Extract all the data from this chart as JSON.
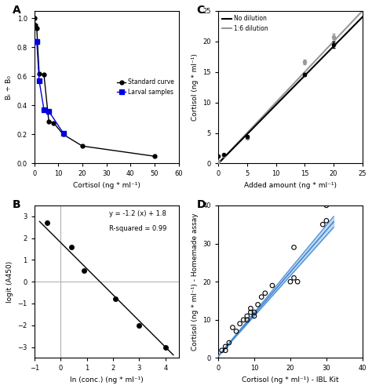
{
  "panel_A": {
    "label": "A",
    "std_x": [
      0,
      0.5,
      1,
      2,
      4,
      6,
      8,
      12,
      20,
      50
    ],
    "std_y": [
      1.0,
      0.95,
      0.93,
      0.62,
      0.61,
      0.29,
      0.28,
      0.2,
      0.12,
      0.05
    ],
    "larval_x": [
      0.5,
      1,
      2,
      4,
      6,
      12
    ],
    "larval_y": [
      0.84,
      0.84,
      0.57,
      0.37,
      0.36,
      0.21
    ],
    "xlabel": "Cortisol (ng * ml⁻¹)",
    "ylabel": "Bᵢ ÷ B₀",
    "xlim": [
      0,
      60
    ],
    "ylim": [
      0.0,
      1.05
    ],
    "xticks": [
      0,
      10,
      20,
      30,
      40,
      50,
      60
    ],
    "yticks": [
      0.0,
      0.2,
      0.4,
      0.6,
      0.8,
      1.0
    ],
    "std_color": "#000000",
    "larval_color": "#0000dd",
    "legend_std": "Standard curve",
    "legend_larval": "Larval samples"
  },
  "panel_B": {
    "label": "B",
    "x": [
      -0.5,
      0.4,
      0.9,
      2.1,
      3.0,
      4.0
    ],
    "y": [
      2.7,
      1.6,
      0.5,
      -0.8,
      -2.0,
      -3.0
    ],
    "fit_x_min": -0.8,
    "fit_x_max": 4.3,
    "fit_slope": -1.2,
    "fit_intercept": 1.8,
    "equation": "y = -1.2 (x) + 1.8",
    "r_squared": "R-squared = 0.99",
    "xlabel": "ln (conc.) (ng * ml⁻¹)",
    "ylabel": "logit (A450)",
    "xlim": [
      -1,
      4.5
    ],
    "ylim": [
      -3.5,
      3.5
    ],
    "xticks": [
      -1,
      0,
      1,
      2,
      3,
      4
    ],
    "yticks": [
      -3,
      -2,
      -1,
      0,
      1,
      2,
      3
    ],
    "vline_x": 0,
    "hline_y": 0,
    "dot_color": "#000000"
  },
  "panel_C": {
    "label": "C",
    "no_dil_x": [
      0,
      1,
      5,
      15,
      20
    ],
    "no_dil_y": [
      1.2,
      1.5,
      4.4,
      14.6,
      19.5
    ],
    "no_dil_yerr": [
      0.1,
      0.1,
      0.2,
      0.3,
      0.5
    ],
    "dil_x": [
      0,
      1,
      5,
      15,
      20
    ],
    "dil_y": [
      0.3,
      1.3,
      4.2,
      16.6,
      20.8
    ],
    "dil_yerr": [
      0.05,
      0.15,
      0.2,
      0.4,
      0.4
    ],
    "xlabel": "Added amount (ng * ml⁻¹)",
    "ylabel": "Cortisol (ng * ml⁻¹)",
    "xlim": [
      0,
      25
    ],
    "ylim": [
      0,
      25
    ],
    "xticks": [
      0,
      5,
      10,
      15,
      20,
      25
    ],
    "yticks": [
      0,
      5,
      10,
      15,
      20,
      25
    ],
    "legend_nodil": "No dilution",
    "legend_dil": "1:6 dilution",
    "nodil_color": "#000000",
    "dil_color": "#999999"
  },
  "panel_D": {
    "label": "D",
    "x": [
      1,
      2,
      2,
      3,
      4,
      5,
      6,
      7,
      8,
      8,
      9,
      9,
      10,
      10,
      11,
      12,
      13,
      15,
      20,
      21,
      21,
      22,
      29,
      30,
      30
    ],
    "y": [
      2,
      2,
      3,
      4,
      8,
      7,
      9,
      10,
      10,
      11,
      12,
      13,
      11,
      12,
      14,
      16,
      17,
      19,
      20,
      21,
      29,
      20,
      35,
      36,
      40
    ],
    "fit_slope": 1.1,
    "fit_intercept": 0.5,
    "fit_x_min": 0,
    "fit_x_max": 32,
    "xlabel": "Cortisol (ng * ml⁻¹) - IBL Kit",
    "ylabel": "Cortisol (ng * ml⁻¹) - Homemade assay",
    "xlim": [
      0,
      40
    ],
    "ylim": [
      0,
      40
    ],
    "xticks": [
      0,
      10,
      20,
      30,
      40
    ],
    "yticks": [
      0,
      10,
      20,
      30,
      40
    ],
    "dot_color": "#000000",
    "line_color": "#4488cc",
    "band_color": "#88bbee"
  },
  "background_color": "#ffffff",
  "fig_background": "#ffffff"
}
